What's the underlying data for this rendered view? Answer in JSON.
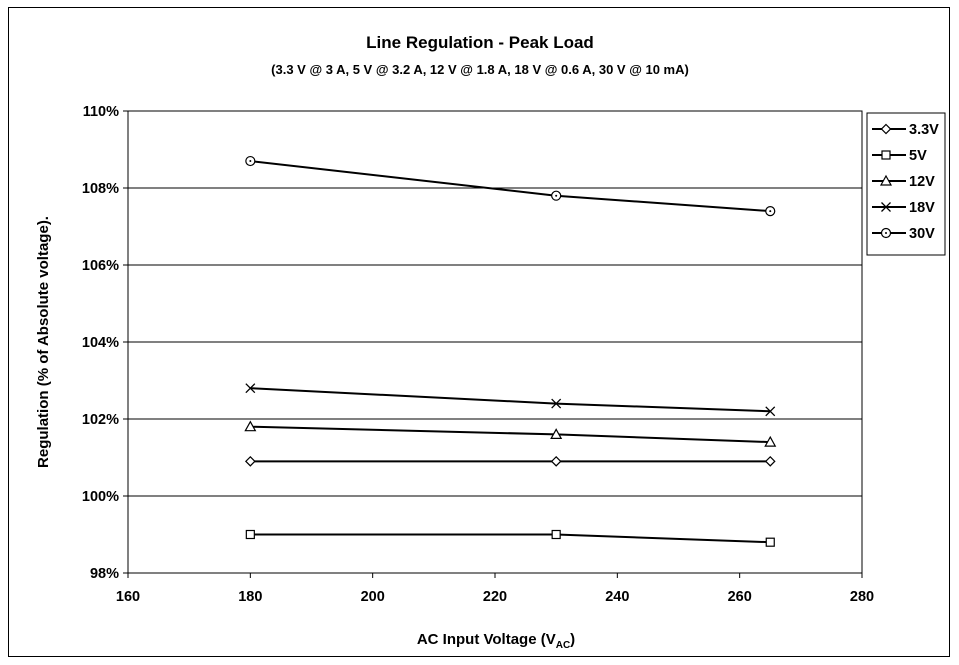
{
  "chart_data": {
    "type": "line",
    "title": "Line Regulation - Peak Load",
    "subtitle": "(3.3 V @ 3 A, 5 V @ 3.2 A, 12 V @ 1.8 A, 18 V @ 0.6 A, 30 V @ 10 mA)",
    "xlabel_main": "AC Input Voltage (V",
    "xlabel_sub": "AC",
    "xlabel_end": ")",
    "ylabel": "Regulation (% of Absolute voltage).",
    "xlim": [
      160,
      280
    ],
    "ylim": [
      98,
      110
    ],
    "x_ticks": [
      "160",
      "180",
      "200",
      "220",
      "240",
      "260",
      "280"
    ],
    "y_ticks": [
      "98%",
      "100%",
      "102%",
      "104%",
      "106%",
      "108%",
      "110%"
    ],
    "grid": "horizontal",
    "legend_position": "right",
    "x": [
      180,
      230,
      265
    ],
    "series": [
      {
        "name": "3.3V",
        "marker": "diamond",
        "values": [
          100.9,
          100.9,
          100.9
        ]
      },
      {
        "name": "5V",
        "marker": "square",
        "values": [
          99.0,
          99.0,
          98.8
        ]
      },
      {
        "name": "12V",
        "marker": "triangle",
        "values": [
          101.8,
          101.6,
          101.4
        ]
      },
      {
        "name": "18V",
        "marker": "x",
        "values": [
          102.8,
          102.4,
          102.2
        ]
      },
      {
        "name": "30V",
        "marker": "circle",
        "values": [
          108.7,
          107.8,
          107.4
        ]
      }
    ]
  }
}
